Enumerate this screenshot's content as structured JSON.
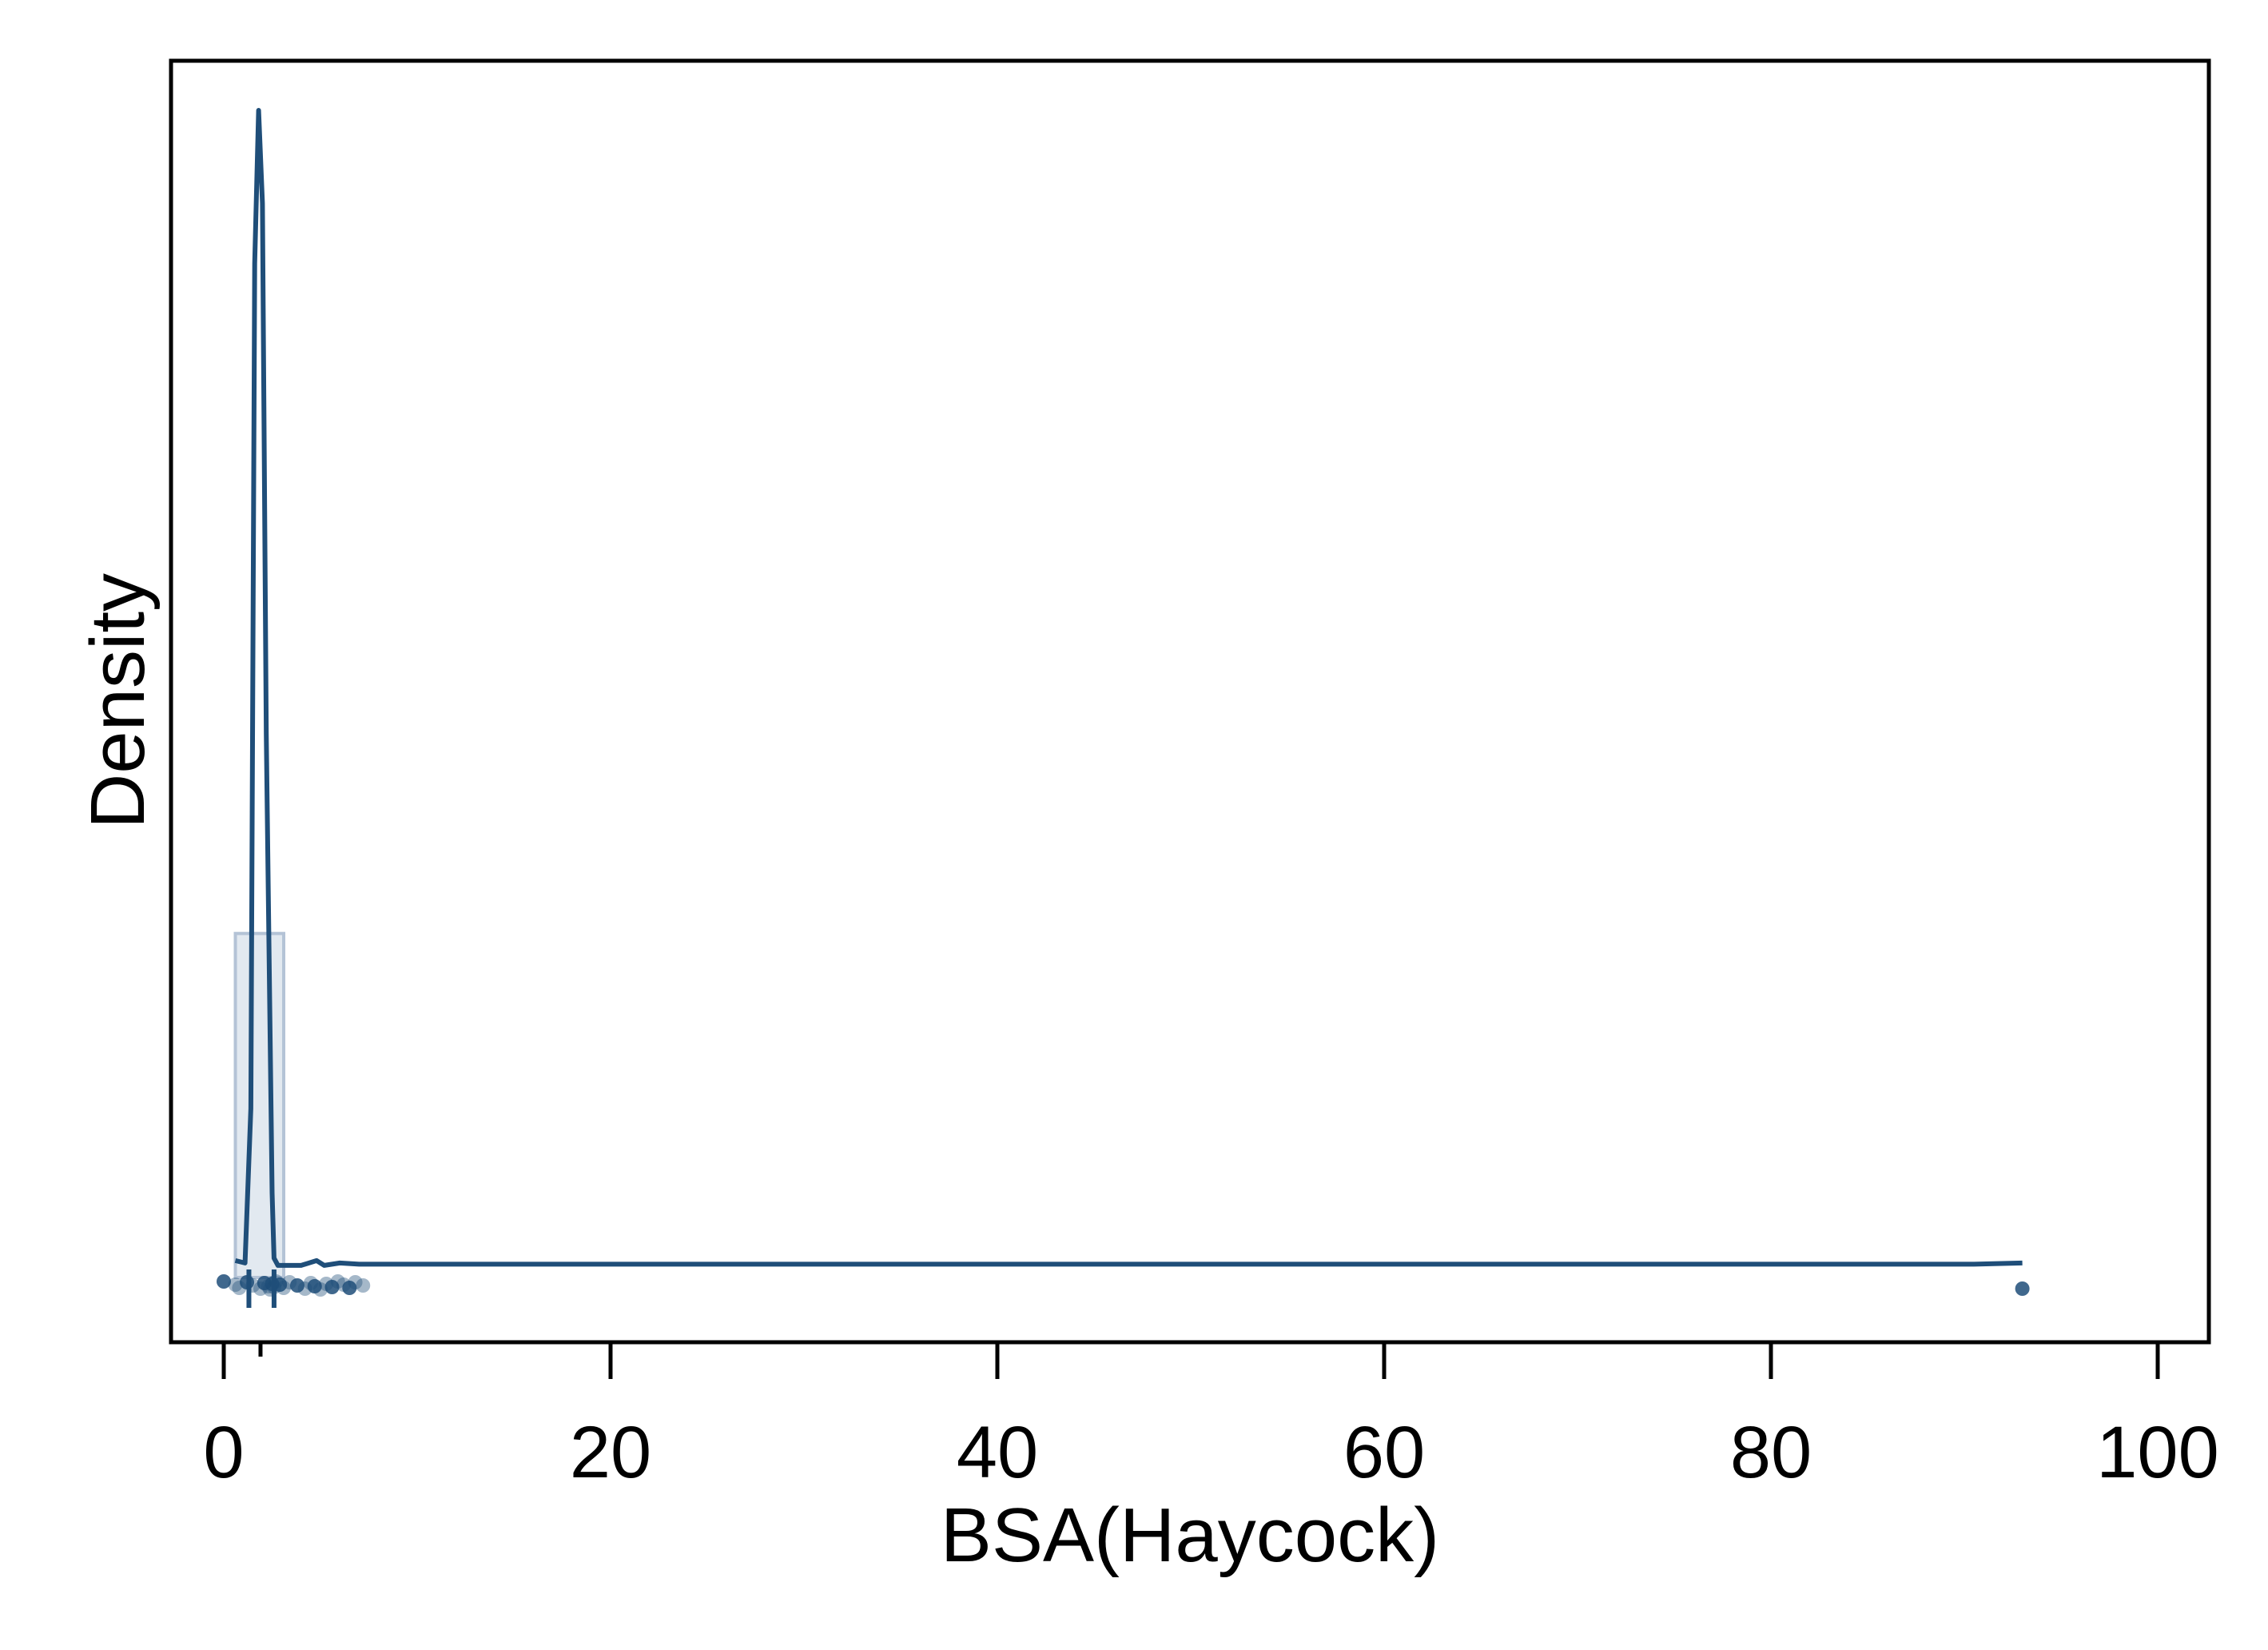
{
  "chart_data": {
    "type": "line",
    "xlabel": "BSA(Haycock)",
    "ylabel": "Density",
    "xlim": [
      -2.6,
      102.8
    ],
    "ylim": [
      0,
      1.0
    ],
    "x_ticks": [
      0,
      20,
      40,
      60,
      80,
      100
    ],
    "x_tick_labels": [
      "0",
      "20",
      "40",
      "60",
      "80",
      "100"
    ],
    "y_ticks_labeled": false,
    "grid": false,
    "legend": "none",
    "colors": {
      "line": "#1f4e79",
      "hist_fill": "#d6dfea",
      "hist_stroke": "#b4c3d6",
      "points": "#1f4e79"
    },
    "histogram": [
      {
        "x0": 0.6,
        "x1": 3.1,
        "density": 0.285
      }
    ],
    "density_curve": {
      "x": [
        0.6,
        1.1,
        1.4,
        1.6,
        1.8,
        2.0,
        2.2,
        2.5,
        2.6,
        2.8,
        3.5,
        4.0,
        4.8,
        5.2,
        6.0,
        7.0,
        10,
        30,
        60,
        90.5,
        93
      ],
      "y": [
        0.014,
        0.012,
        0.14,
        0.84,
        0.967,
        0.89,
        0.45,
        0.07,
        0.016,
        0.01,
        0.01,
        0.01,
        0.014,
        0.01,
        0.012,
        0.011,
        0.011,
        0.011,
        0.011,
        0.011,
        0.012
      ]
    },
    "rug_points": [
      0.0,
      0.6,
      0.8,
      1.2,
      1.5,
      1.9,
      2.1,
      2.3,
      2.4,
      2.5,
      2.6,
      2.7,
      2.9,
      3.1,
      3.4,
      3.8,
      4.2,
      4.5,
      4.7,
      5.0,
      5.3,
      5.6,
      5.9,
      6.2,
      6.5,
      6.8,
      7.2,
      93.0
    ],
    "reference_lines": [
      1.3,
      2.6
    ],
    "x_marker": 1.9
  }
}
